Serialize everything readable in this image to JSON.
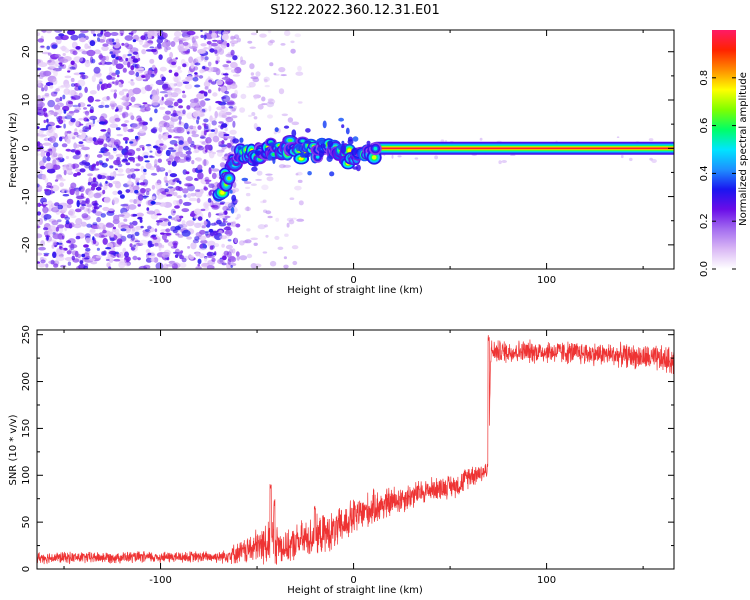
{
  "title": "S122.2022.360.12.31.E01",
  "chart_data": [
    {
      "type": "heatmap",
      "xlabel": "Height of straight line (km)",
      "ylabel": "Frequency (Hz)",
      "xlim": [
        -164,
        166
      ],
      "ylim": [
        -25,
        24.5
      ],
      "xticks": [
        -100,
        0,
        100
      ],
      "yticks": [
        -20,
        -10,
        0,
        10,
        20
      ],
      "colorbar": {
        "label": "Normalized spectral amplitude",
        "range": [
          0,
          1
        ],
        "ticks": [
          "0.0",
          "0.2",
          "0.4",
          "0.6",
          "0.8"
        ],
        "tick_values": [
          0,
          0.2,
          0.4,
          0.6,
          0.8
        ],
        "colormap": [
          "#ffffff",
          "#dab8f5",
          "#a46df0",
          "#6a0de8",
          "#1a16f0",
          "#1e90ff",
          "#00e5ff",
          "#00ff66",
          "#7fff00",
          "#ffff00",
          "#ff8c00",
          "#ff2200",
          "#ff1a66"
        ]
      },
      "noise_region": {
        "x_start": -164,
        "x_end": -63
      },
      "ridge": [
        [
          -70,
          -9
        ],
        [
          -66,
          -6
        ],
        [
          -63,
          -4
        ],
        [
          -60,
          -2
        ],
        [
          -55,
          -1.5
        ],
        [
          -50,
          -1
        ],
        [
          -45,
          -0.5
        ],
        [
          -40,
          0
        ],
        [
          -35,
          0
        ],
        [
          -30,
          -0.5
        ],
        [
          -25,
          0
        ],
        [
          -20,
          0
        ],
        [
          -15,
          0.5
        ],
        [
          -10,
          -0.5
        ],
        [
          -5,
          -1
        ],
        [
          0,
          -1.5
        ],
        [
          5,
          -1
        ],
        [
          10,
          -0.3
        ],
        [
          12,
          0
        ],
        [
          166,
          0
        ]
      ],
      "ridge_peak_amplitude": 0.95
    },
    {
      "type": "line",
      "xlabel": "Height of straight line (km)",
      "ylabel": "SNR (10 * v/v)",
      "xlim": [
        -164,
        166
      ],
      "ylim": [
        0,
        255
      ],
      "xticks": [
        -100,
        0,
        100
      ],
      "yticks": [
        0,
        50,
        100,
        150,
        200,
        250
      ],
      "color": "#ee3333",
      "envelope": [
        {
          "x": -164,
          "mean": 12,
          "spread": 6
        },
        {
          "x": -70,
          "mean": 13,
          "spread": 6
        },
        {
          "x": -58,
          "mean": 18,
          "spread": 12
        },
        {
          "x": -48,
          "mean": 25,
          "spread": 20
        },
        {
          "x": -42,
          "mean": 30,
          "spread": 25
        },
        {
          "x": -35,
          "mean": 22,
          "spread": 15
        },
        {
          "x": -28,
          "mean": 30,
          "spread": 20
        },
        {
          "x": -20,
          "mean": 35,
          "spread": 20
        },
        {
          "x": -10,
          "mean": 40,
          "spread": 20
        },
        {
          "x": 0,
          "mean": 55,
          "spread": 20
        },
        {
          "x": 10,
          "mean": 65,
          "spread": 18
        },
        {
          "x": 25,
          "mean": 75,
          "spread": 15
        },
        {
          "x": 40,
          "mean": 85,
          "spread": 12
        },
        {
          "x": 55,
          "mean": 90,
          "spread": 12
        },
        {
          "x": 60,
          "mean": 100,
          "spread": 12
        },
        {
          "x": 70,
          "mean": 105,
          "spread": 10
        },
        {
          "x": 71,
          "mean": 232,
          "spread": 12
        },
        {
          "x": 100,
          "mean": 232,
          "spread": 12
        },
        {
          "x": 140,
          "mean": 228,
          "spread": 12
        },
        {
          "x": 166,
          "mean": 222,
          "spread": 15
        }
      ],
      "spikes": [
        {
          "x": -43,
          "y": 92
        },
        {
          "x": -41,
          "y": 75
        },
        {
          "x": -20,
          "y": 68
        },
        {
          "x": 70,
          "y": 250
        }
      ]
    }
  ]
}
